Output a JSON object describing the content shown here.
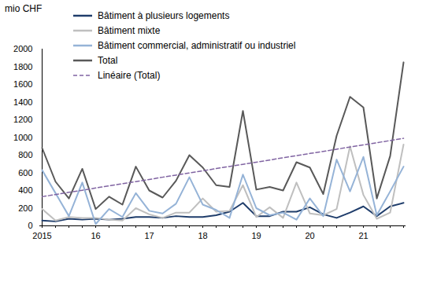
{
  "chart_data": {
    "type": "line",
    "y_label": "mio CHF",
    "categories": [
      "2015",
      null,
      null,
      null,
      "16",
      null,
      null,
      null,
      "17",
      null,
      null,
      null,
      "18",
      null,
      null,
      null,
      "19",
      null,
      null,
      null,
      "20",
      null,
      null,
      null,
      "21",
      null,
      null,
      null
    ],
    "series": [
      {
        "name": "Bâtiment à plusieurs logements",
        "color": "#1f3d6b",
        "values": [
          60,
          50,
          80,
          70,
          80,
          70,
          80,
          100,
          100,
          90,
          110,
          100,
          100,
          120,
          160,
          260,
          110,
          110,
          160,
          160,
          210,
          130,
          90,
          150,
          220,
          110,
          220,
          260
        ]
      },
      {
        "name": "Bâtiment mixte",
        "color": "#bfbfbf",
        "values": [
          190,
          60,
          100,
          90,
          90,
          70,
          60,
          200,
          130,
          90,
          150,
          150,
          310,
          160,
          170,
          460,
          100,
          210,
          90,
          490,
          140,
          120,
          190,
          900,
          350,
          80,
          150,
          920
        ]
      },
      {
        "name": "Bâtiment commercial, administratif  ou industriel",
        "color": "#95b3d7",
        "values": [
          630,
          370,
          110,
          490,
          20,
          190,
          100,
          370,
          170,
          140,
          250,
          550,
          240,
          180,
          90,
          580,
          200,
          120,
          150,
          70,
          310,
          110,
          750,
          390,
          780,
          120,
          390,
          670
        ]
      },
      {
        "name": "Total",
        "color": "#595959",
        "values": [
          880,
          500,
          310,
          645,
          190,
          330,
          240,
          670,
          400,
          320,
          510,
          800,
          660,
          460,
          440,
          1300,
          410,
          440,
          400,
          720,
          660,
          360,
          1020,
          1460,
          1340,
          310,
          790,
          1850
        ]
      },
      {
        "name": "Linéaire (Total)",
        "color": "#8064a2",
        "line_style": "dashed",
        "values": [
          330,
          354,
          379,
          403,
          428,
          452,
          477,
          501,
          525,
          550,
          574,
          599,
          623,
          648,
          672,
          696,
          721,
          745,
          770,
          794,
          819,
          843,
          867,
          892,
          916,
          941,
          965,
          990
        ]
      }
    ],
    "ylim": [
      0,
      2000
    ],
    "yticks": [
      0,
      200,
      400,
      600,
      800,
      1000,
      1200,
      1400,
      1600,
      1800,
      2000
    ],
    "grid": false,
    "legend": "top-left"
  }
}
